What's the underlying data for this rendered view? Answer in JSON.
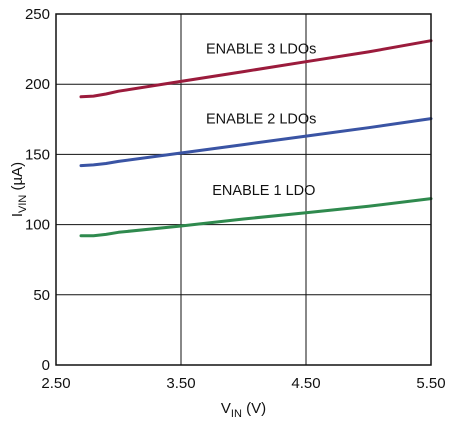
{
  "chart_data": {
    "type": "line",
    "xlabel": {
      "main": "V",
      "sub": "IN",
      "unit": " (V)"
    },
    "ylabel": {
      "main": "I",
      "sub": "VIN",
      "unit": " (µA)"
    },
    "xlim": [
      2.5,
      5.5
    ],
    "ylim": [
      0,
      250
    ],
    "x_ticks": [
      2.5,
      3.5,
      4.5,
      5.5
    ],
    "x_tick_labels": [
      "2.50",
      "3.50",
      "4.50",
      "5.50"
    ],
    "y_ticks": [
      0,
      50,
      100,
      150,
      200,
      250
    ],
    "y_tick_labels": [
      "0",
      "50",
      "100",
      "150",
      "200",
      "250"
    ],
    "grid": true,
    "series": [
      {
        "name": "ENABLE 3 LDOs",
        "color": "#9b1b3c",
        "x": [
          2.7,
          2.8,
          2.9,
          3.0,
          3.5,
          4.0,
          4.5,
          5.0,
          5.5
        ],
        "y": [
          191,
          191.5,
          193,
          195,
          202,
          209,
          216,
          223,
          231
        ]
      },
      {
        "name": "ENABLE 2 LDOs",
        "color": "#3a54a4",
        "x": [
          2.7,
          2.8,
          2.9,
          3.0,
          3.5,
          4.0,
          4.5,
          5.0,
          5.5
        ],
        "y": [
          142,
          142.5,
          143.5,
          145,
          151,
          157,
          163,
          169,
          175.5
        ]
      },
      {
        "name": "ENABLE 1 LDO",
        "color": "#2f8a4e",
        "x": [
          2.7,
          2.8,
          2.9,
          3.0,
          3.5,
          4.0,
          4.5,
          5.0,
          5.5
        ],
        "y": [
          92,
          92,
          93,
          94.5,
          99,
          104,
          108.5,
          113,
          118.5
        ]
      }
    ],
    "annotations": [
      {
        "text": "ENABLE 3 LDOs",
        "x": 3.7,
        "y": 222
      },
      {
        "text": "ENABLE 2 LDOs",
        "x": 3.7,
        "y": 172
      },
      {
        "text": "ENABLE 1 LDO",
        "x": 3.75,
        "y": 121
      }
    ]
  }
}
